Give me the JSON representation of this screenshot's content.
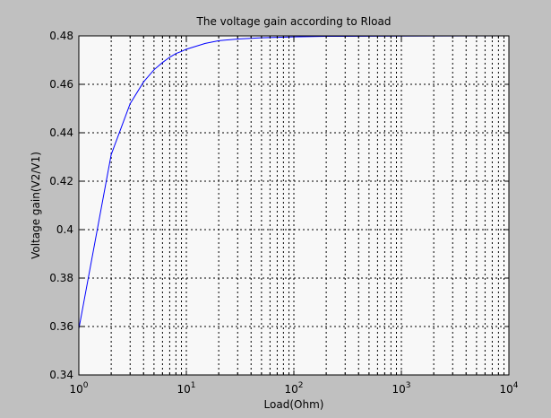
{
  "chart_data": {
    "type": "line",
    "title": "The voltage gain according to Rload",
    "xlabel": "Load(Ohm)",
    "ylabel": "Voltage gain(V2/V1)",
    "xscale": "log",
    "xlim": [
      1,
      10000
    ],
    "ylim": [
      0.34,
      0.48
    ],
    "grid": true,
    "x_ticks": [
      {
        "base": "10",
        "exp": "0"
      },
      {
        "base": "10",
        "exp": "1"
      },
      {
        "base": "10",
        "exp": "2"
      },
      {
        "base": "10",
        "exp": "3"
      },
      {
        "base": "10",
        "exp": "4"
      }
    ],
    "y_ticks": [
      "0.34",
      "0.36",
      "0.38",
      "0.4",
      "0.42",
      "0.44",
      "0.46",
      "0.48"
    ],
    "series": [
      {
        "color": "#0000ff",
        "x": [
          1,
          2,
          3,
          4,
          5,
          6,
          7,
          8,
          9,
          10,
          15,
          20,
          30,
          50,
          70,
          100,
          200,
          1000,
          10000
        ],
        "y": [
          0.359,
          0.431,
          0.452,
          0.461,
          0.466,
          0.469,
          0.4712,
          0.4727,
          0.4736,
          0.4745,
          0.4769,
          0.478,
          0.4787,
          0.4792,
          0.4794,
          0.4796,
          0.4798,
          0.4799,
          0.48
        ]
      }
    ]
  },
  "colors": {
    "figure_background": "#c0c0c0",
    "plot_background": "#f8f8f8",
    "line": "#0000ff"
  }
}
